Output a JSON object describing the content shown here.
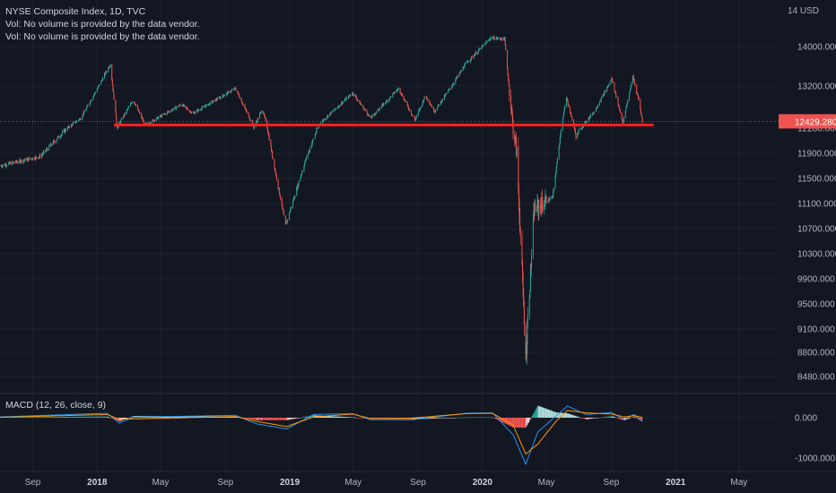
{
  "legend": {
    "title": "NYSE Composite Index, 1D, TVC",
    "vol_line_1": "Vol: No volume is provided by the data vendor.",
    "vol_line_2": "Vol: No volume is provided by the data vendor."
  },
  "macd_legend": "MACD (12, 26, close, 9)",
  "colors": {
    "background": "#131722",
    "grid": "#1e222d",
    "up": "#26a69a",
    "down": "#ef5350",
    "support_line": "#ff1e1e",
    "macd_line": "#2196f3",
    "signal_line": "#ff9800",
    "text": "#b2b5be"
  },
  "chart_data": [
    {
      "type": "candlestick",
      "title": "NYSE Composite Index, 1D, TVC",
      "currency_label": "14 USD",
      "y_ticks": [
        "14000.000",
        "13200.000",
        "12280.000",
        "11900.000",
        "11500.000",
        "11100.000",
        "10700.000",
        "10300.000",
        "9900.000",
        "9500.000",
        "9100.000",
        "8800.000",
        "8480.000"
      ],
      "y_tick_values": [
        14000,
        13200,
        12280,
        11900,
        11500,
        11100,
        10700,
        10300,
        9900,
        9500,
        9100,
        8800,
        8480
      ],
      "last_price": "12429.280",
      "last_price_value": 12429.28,
      "support_level": 12350,
      "x_tick_labels": [
        "Sep",
        "2018",
        "May",
        "Sep",
        "2019",
        "May",
        "Sep",
        "2020",
        "May",
        "Sep",
        "2021",
        "May"
      ],
      "x_tick_dates": [
        "2017-09-01",
        "2018-01-01",
        "2018-05-01",
        "2018-09-01",
        "2019-01-01",
        "2019-05-01",
        "2019-09-01",
        "2020-01-01",
        "2020-05-01",
        "2020-09-01",
        "2021-01-01",
        "2021-05-01"
      ],
      "x_range": [
        "2017-07-01",
        "2021-07-15"
      ],
      "key_points": [
        {
          "date": "2017-07-01",
          "value": 11700
        },
        {
          "date": "2017-09-15",
          "value": 11850
        },
        {
          "date": "2017-12-01",
          "value": 12500
        },
        {
          "date": "2018-01-26",
          "value": 13650
        },
        {
          "date": "2018-02-08",
          "value": 12300
        },
        {
          "date": "2018-03-10",
          "value": 12900
        },
        {
          "date": "2018-04-02",
          "value": 12350
        },
        {
          "date": "2018-06-10",
          "value": 12800
        },
        {
          "date": "2018-07-01",
          "value": 12600
        },
        {
          "date": "2018-09-20",
          "value": 13150
        },
        {
          "date": "2018-10-25",
          "value": 12300
        },
        {
          "date": "2018-11-10",
          "value": 12700
        },
        {
          "date": "2018-12-24",
          "value": 10750
        },
        {
          "date": "2019-01-31",
          "value": 11800
        },
        {
          "date": "2019-02-28",
          "value": 12400
        },
        {
          "date": "2019-04-30",
          "value": 13050
        },
        {
          "date": "2019-06-03",
          "value": 12500
        },
        {
          "date": "2019-07-26",
          "value": 13150
        },
        {
          "date": "2019-08-26",
          "value": 12450
        },
        {
          "date": "2019-09-15",
          "value": 13000
        },
        {
          "date": "2019-10-02",
          "value": 12650
        },
        {
          "date": "2019-11-30",
          "value": 13650
        },
        {
          "date": "2020-01-17",
          "value": 14180
        },
        {
          "date": "2020-02-12",
          "value": 14150
        },
        {
          "date": "2020-02-28",
          "value": 12300
        },
        {
          "date": "2020-03-06",
          "value": 11900
        },
        {
          "date": "2020-03-23",
          "value": 8700
        },
        {
          "date": "2020-04-08",
          "value": 11000
        },
        {
          "date": "2020-05-13",
          "value": 11200
        },
        {
          "date": "2020-06-08",
          "value": 12950
        },
        {
          "date": "2020-06-26",
          "value": 12150
        },
        {
          "date": "2020-07-31",
          "value": 12650
        },
        {
          "date": "2020-09-02",
          "value": 13350
        },
        {
          "date": "2020-09-23",
          "value": 12400
        },
        {
          "date": "2020-10-12",
          "value": 13400
        },
        {
          "date": "2020-10-23",
          "value": 12900
        },
        {
          "date": "2020-10-30",
          "value": 12429
        }
      ]
    },
    {
      "type": "macd",
      "title": "MACD (12, 26, close, 9)",
      "y_ticks": [
        "0.000",
        "-1000.000"
      ],
      "y_tick_values": [
        0,
        -1000
      ],
      "key_points": [
        {
          "date": "2017-07-01",
          "macd": 20,
          "signal": 10
        },
        {
          "date": "2018-01-20",
          "macd": 110,
          "signal": 80
        },
        {
          "date": "2018-02-12",
          "macd": -130,
          "signal": -40
        },
        {
          "date": "2018-03-10",
          "macd": 10,
          "signal": -30
        },
        {
          "date": "2018-09-20",
          "macd": 60,
          "signal": 30
        },
        {
          "date": "2018-10-30",
          "macd": -150,
          "signal": -90
        },
        {
          "date": "2018-12-26",
          "macd": -280,
          "signal": -220
        },
        {
          "date": "2019-02-15",
          "macd": 80,
          "signal": 20
        },
        {
          "date": "2019-04-30",
          "macd": 100,
          "signal": 90
        },
        {
          "date": "2019-06-03",
          "macd": -50,
          "signal": -20
        },
        {
          "date": "2019-08-20",
          "macd": -50,
          "signal": -10
        },
        {
          "date": "2019-12-01",
          "macd": 110,
          "signal": 100
        },
        {
          "date": "2020-01-20",
          "macd": 120,
          "signal": 110
        },
        {
          "date": "2020-02-28",
          "macd": -420,
          "signal": -180
        },
        {
          "date": "2020-03-23",
          "macd": -1150,
          "signal": -900
        },
        {
          "date": "2020-04-15",
          "macd": -350,
          "signal": -650
        },
        {
          "date": "2020-05-20",
          "macd": 50,
          "signal": -80
        },
        {
          "date": "2020-06-10",
          "macd": 290,
          "signal": 180
        },
        {
          "date": "2020-07-15",
          "macd": 80,
          "signal": 120
        },
        {
          "date": "2020-09-02",
          "macd": 130,
          "signal": 90
        },
        {
          "date": "2020-09-25",
          "macd": -50,
          "signal": 20
        },
        {
          "date": "2020-10-14",
          "macd": 80,
          "signal": 50
        },
        {
          "date": "2020-10-30",
          "macd": -90,
          "signal": 10
        }
      ]
    }
  ]
}
